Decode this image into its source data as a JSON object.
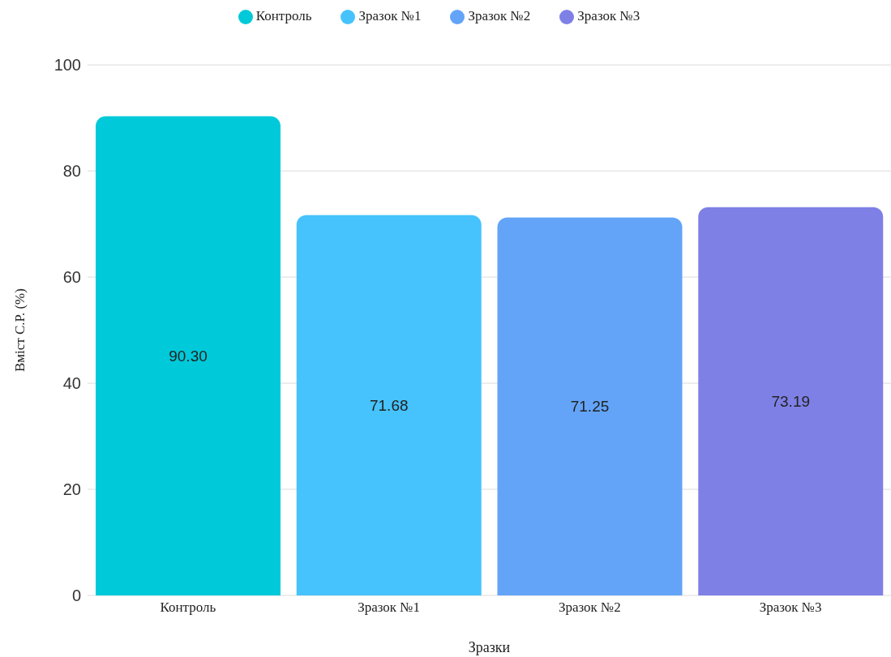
{
  "chart_data": {
    "type": "bar",
    "xlabel": "Зразки",
    "ylabel": "Вміст С.Р. (%)",
    "stacked": true,
    "categories": [
      "Контроль",
      "Зразок №1",
      "Зразок №2",
      "Зразок №3"
    ],
    "series": [
      {
        "name": "Контроль",
        "color": "#00c9d9",
        "values": [
          90.3,
          null,
          null,
          null
        ],
        "value_labels": [
          "90.30",
          null,
          null,
          null
        ]
      },
      {
        "name": "Зразок №1",
        "color": "#46c3fc",
        "values": [
          null,
          71.68,
          null,
          null
        ],
        "value_labels": [
          null,
          "71.68",
          null,
          null
        ]
      },
      {
        "name": "Зразок №2",
        "color": "#63a4f8",
        "values": [
          null,
          null,
          71.25,
          null
        ],
        "value_labels": [
          null,
          null,
          "71.25",
          null
        ]
      },
      {
        "name": "Зразок №3",
        "color": "#7e80e6",
        "values": [
          null,
          null,
          null,
          73.19
        ],
        "value_labels": [
          null,
          null,
          null,
          "73.19"
        ]
      }
    ],
    "ylim": [
      0,
      100
    ],
    "yticks": [
      0,
      20,
      40,
      60,
      80,
      100
    ],
    "grid": "y",
    "legend": "top"
  }
}
